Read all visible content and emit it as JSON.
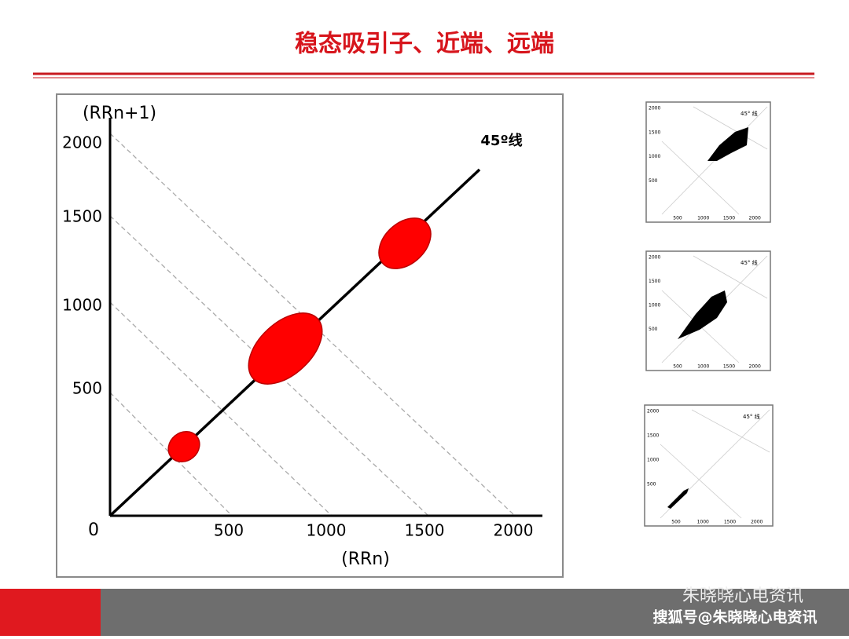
{
  "title": "稳态吸引子、近端、远端",
  "main_plot": {
    "y_axis_label": "(RRn+1)",
    "x_axis_label": "(RRn)",
    "line_label": "45º线",
    "origin_label": "0",
    "y_tick_labels": [
      "2000",
      "1500",
      "1000",
      "500"
    ],
    "x_tick_labels": [
      "500",
      "1000",
      "1500",
      "2000"
    ]
  },
  "thumbnails": [
    {
      "line_label": "45° 线",
      "y_tick_labels": [
        "2000",
        "1500",
        "1000",
        "500"
      ],
      "x_tick_labels": [
        "500",
        "1000",
        "1500",
        "2000"
      ]
    },
    {
      "line_label": "45° 线",
      "y_tick_labels": [
        "2000",
        "1500",
        "1000",
        "500"
      ],
      "x_tick_labels": [
        "500",
        "1000",
        "1500",
        "2000"
      ]
    },
    {
      "line_label": "45° 线",
      "y_tick_labels": [
        "2000",
        "1500",
        "1000",
        "500"
      ],
      "x_tick_labels": [
        "500",
        "1000",
        "1500",
        "2000"
      ]
    }
  ],
  "footer": {
    "account": "朱晓晓心电资讯",
    "watermark": "搜狐号@朱晓晓心电资讯"
  }
}
